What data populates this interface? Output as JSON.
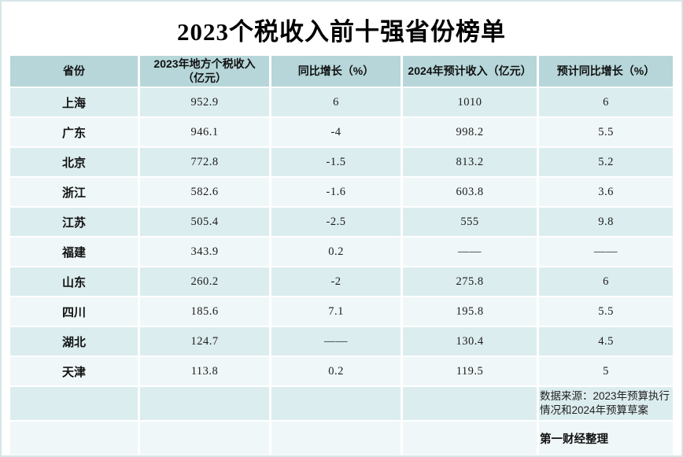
{
  "title": "2023个税收入前十强省份榜单",
  "table": {
    "columns": [
      "省份",
      "2023年地方个税收入\n（亿元）",
      "同比增长（%）",
      "2024年预计收入（亿元）",
      "预计同比增长（%）"
    ],
    "rows": [
      [
        "上海",
        "952.9",
        "6",
        "1010",
        "6"
      ],
      [
        "广东",
        "946.1",
        "-4",
        "998.2",
        "5.5"
      ],
      [
        "北京",
        "772.8",
        "-1.5",
        "813.2",
        "5.2"
      ],
      [
        "浙江",
        "582.6",
        "-1.6",
        "603.8",
        "3.6"
      ],
      [
        "江苏",
        "505.4",
        "-2.5",
        "555",
        "9.8"
      ],
      [
        "福建",
        "343.9",
        "0.2",
        "——",
        "——"
      ],
      [
        "山东",
        "260.2",
        "-2",
        "275.8",
        "6"
      ],
      [
        "四川",
        "185.6",
        "7.1",
        "195.8",
        "5.5"
      ],
      [
        "湖北",
        "124.7",
        "——",
        "130.4",
        "4.5"
      ],
      [
        "天津",
        "113.8",
        "0.2",
        "119.5",
        "5"
      ]
    ]
  },
  "footer": {
    "source": "数据来源：2023年预算执行情况和2024年预算草案",
    "credit": "第一财经整理"
  },
  "colors": {
    "header_bg": "#b6d6d9",
    "row_teal_bg": "#dcedef",
    "row_light_bg": "#f0f7f8",
    "canvas_border": "#d6e5e8",
    "text": "#111111"
  },
  "chart_data": {
    "type": "table",
    "title": "2023个税收入前十强省份榜单",
    "columns": [
      "省份",
      "2023年地方个税收入（亿元）",
      "同比增长（%）",
      "2024年预计收入（亿元）",
      "预计同比增长（%）"
    ],
    "rows": [
      [
        "上海",
        952.9,
        6,
        1010,
        6
      ],
      [
        "广东",
        946.1,
        -4,
        998.2,
        5.5
      ],
      [
        "北京",
        772.8,
        -1.5,
        813.2,
        5.2
      ],
      [
        "浙江",
        582.6,
        -1.6,
        603.8,
        3.6
      ],
      [
        "江苏",
        505.4,
        -2.5,
        555,
        9.8
      ],
      [
        "福建",
        343.9,
        0.2,
        null,
        null
      ],
      [
        "山东",
        260.2,
        -2,
        275.8,
        6
      ],
      [
        "四川",
        185.6,
        7.1,
        195.8,
        5.5
      ],
      [
        "湖北",
        124.7,
        null,
        130.4,
        4.5
      ],
      [
        "天津",
        113.8,
        0.2,
        119.5,
        5
      ]
    ],
    "notes": "null cells are shown as an em-dash line —— in the image",
    "source_note": "数据来源：2023年预算执行情况和2024年预算草案",
    "credit": "第一财经整理"
  }
}
